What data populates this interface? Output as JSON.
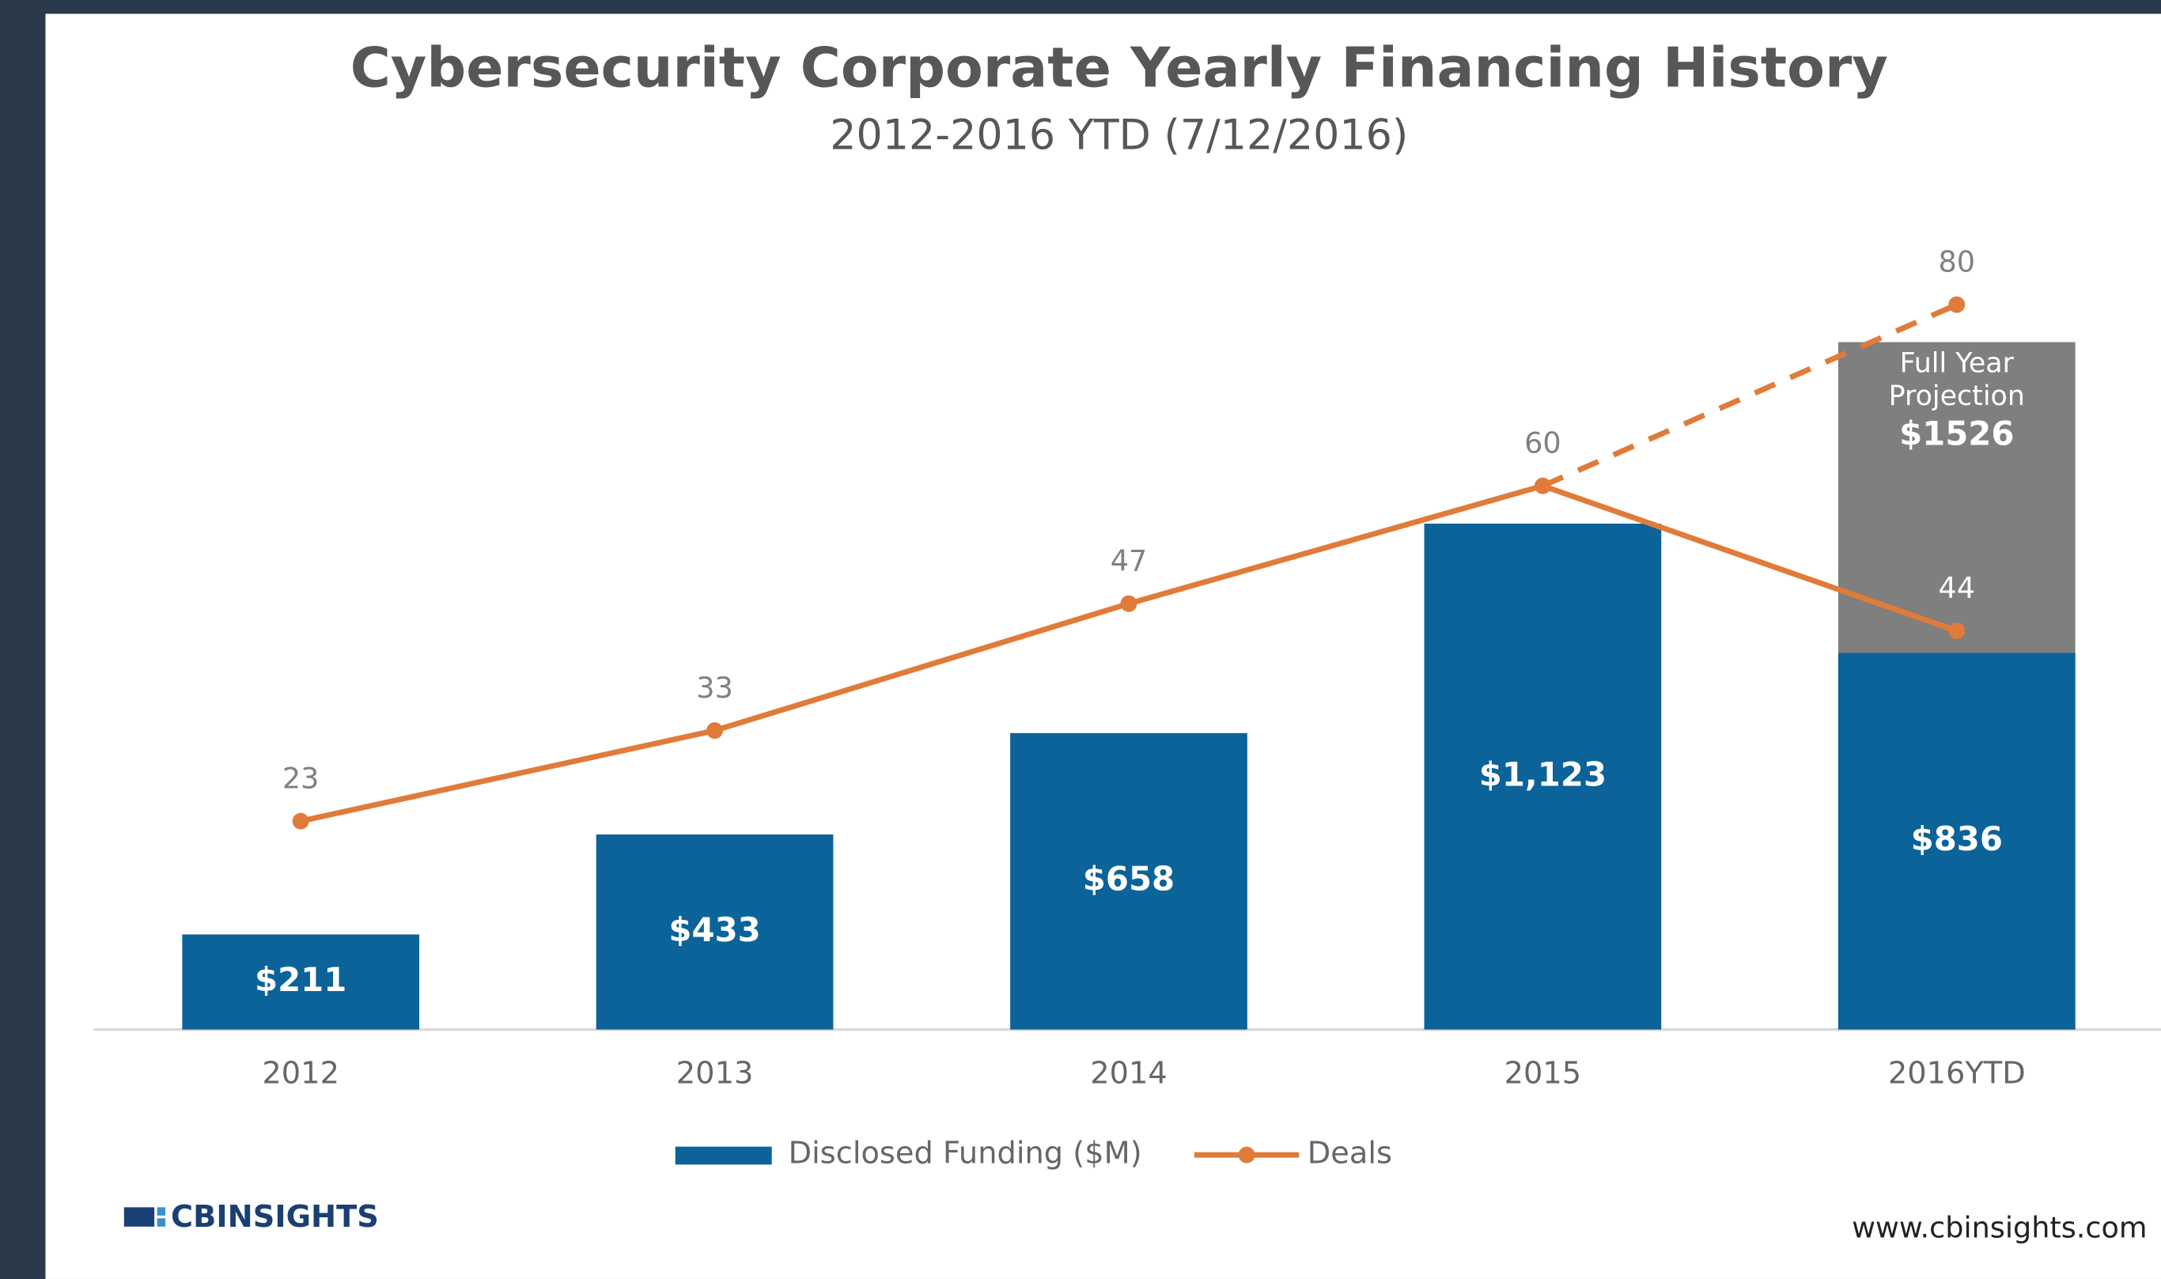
{
  "chart_data": {
    "type": "bar",
    "title": "Cybersecurity Corporate Yearly Financing History",
    "subtitle": "2012-2016 YTD (7/12/2016)",
    "categories": [
      "2012",
      "2013",
      "2014",
      "2015",
      "2016YTD"
    ],
    "series": [
      {
        "name": "Disclosed Funding ($M)",
        "type": "bar",
        "color": "#0b6399",
        "values": [
          211,
          433,
          658,
          1123,
          836
        ],
        "value_labels": [
          "$211",
          "$433",
          "$658",
          "$1,123",
          "$836"
        ]
      },
      {
        "name": "Deals",
        "type": "line",
        "axis": "y2",
        "color": "#e07b39",
        "values": [
          23,
          33,
          47,
          60,
          44
        ]
      },
      {
        "type": "line",
        "axis": "y2",
        "color": "#e07b39",
        "dashed": true,
        "values": [
          null,
          null,
          null,
          60,
          80
        ]
      }
    ],
    "projection": {
      "label": "Full Year Projection",
      "color": "#7f7f7f",
      "values": [
        null,
        null,
        null,
        null,
        1526
      ],
      "value_labels": [
        null,
        null,
        null,
        null,
        "$1526"
      ]
    },
    "ylim": [
      0,
      1750
    ],
    "y2lim": [
      0,
      87
    ],
    "legend": "bottom",
    "logo": "CBINSIGHTS",
    "source": "www.cbinsights.com"
  }
}
